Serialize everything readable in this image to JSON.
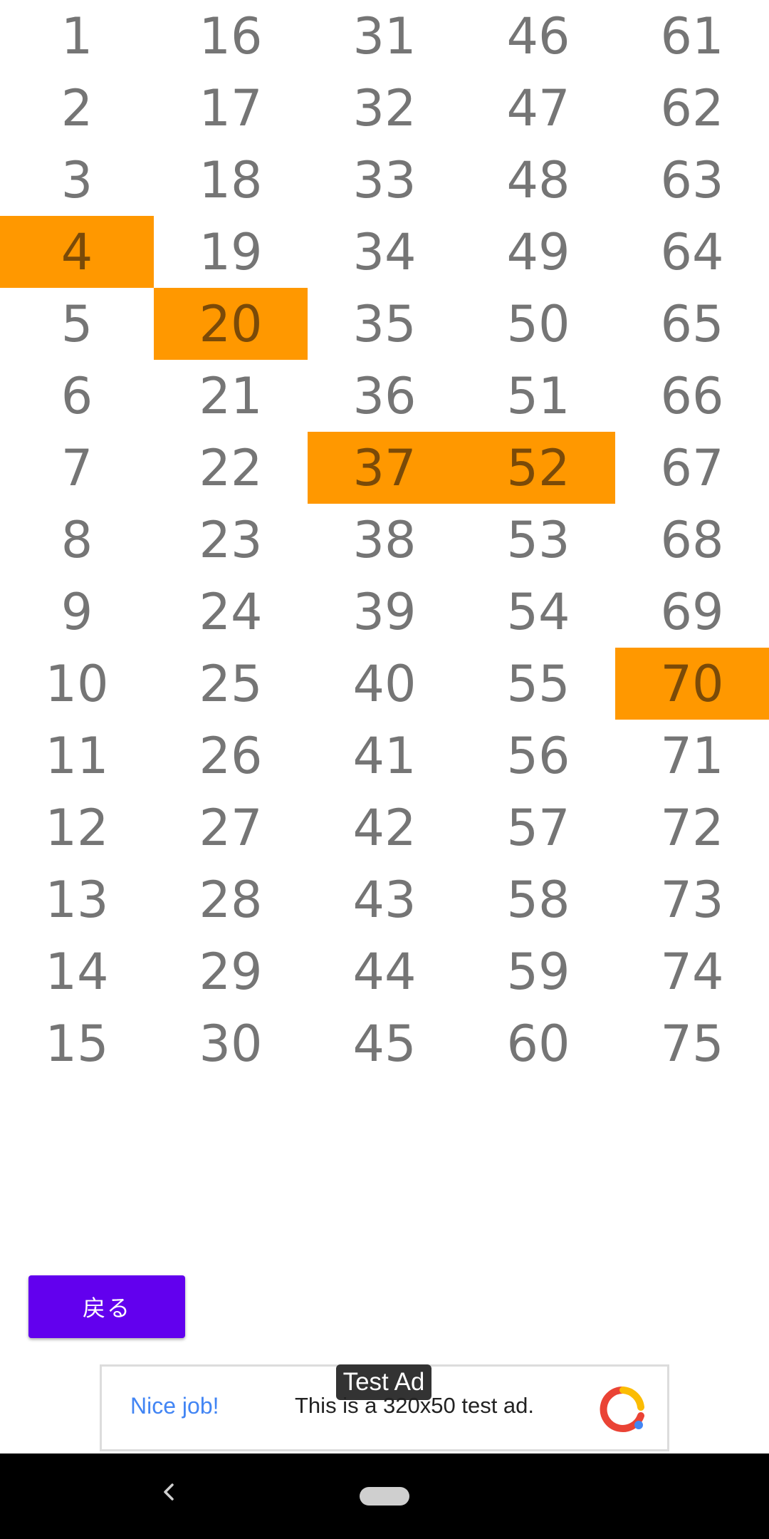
{
  "board": {
    "columns": [
      [
        "1",
        "2",
        "3",
        "4",
        "5",
        "6",
        "7",
        "8",
        "9",
        "10",
        "11",
        "12",
        "13",
        "14",
        "15"
      ],
      [
        "16",
        "17",
        "18",
        "19",
        "20",
        "21",
        "22",
        "23",
        "24",
        "25",
        "26",
        "27",
        "28",
        "29",
        "30"
      ],
      [
        "31",
        "32",
        "33",
        "34",
        "35",
        "36",
        "37",
        "38",
        "39",
        "40",
        "41",
        "42",
        "43",
        "44",
        "45"
      ],
      [
        "46",
        "47",
        "48",
        "49",
        "50",
        "51",
        "52",
        "53",
        "54",
        "55",
        "56",
        "57",
        "58",
        "59",
        "60"
      ],
      [
        "61",
        "62",
        "63",
        "64",
        "65",
        "66",
        "67",
        "68",
        "69",
        "70",
        "71",
        "72",
        "73",
        "74",
        "75"
      ]
    ],
    "highlighted": [
      "4",
      "20",
      "37",
      "52",
      "70"
    ],
    "highlight_color": "#ff9800",
    "number_color": "#757575"
  },
  "back_button": {
    "label": "戻る",
    "color": "#6200ee"
  },
  "ad": {
    "badge": "Test Ad",
    "nice_text": "Nice job!",
    "message": "This is a 320x50 test ad.",
    "logo_icon": "admob-logo-icon"
  },
  "nav": {
    "back_icon": "chevron-left-icon",
    "home_icon": "home-pill-icon"
  }
}
